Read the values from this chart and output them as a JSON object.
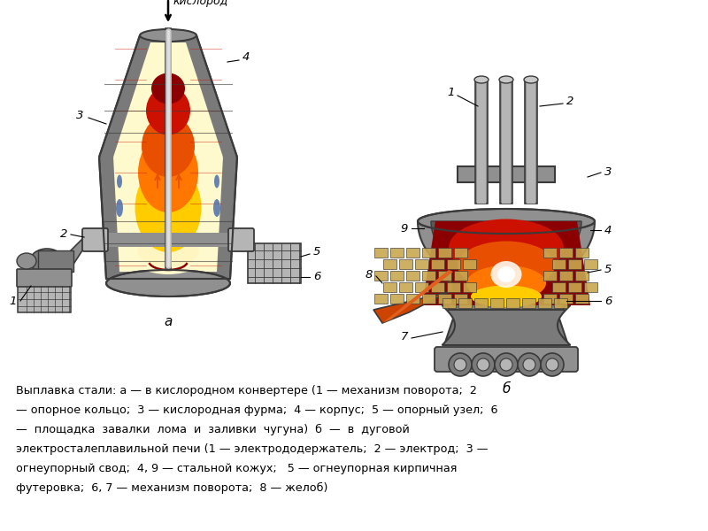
{
  "background_color": "#ffffff",
  "fig_width": 8.0,
  "fig_height": 6.0,
  "dpi": 100,
  "caption_line1": "Выплавка стали: а — в кислородном конвертере (1 — механизм поворота;  2",
  "caption_line2": "— опорное кольцо;  3 — кислородная фурма;  4 — корпус;  5 — опорный узел;  6",
  "caption_line3": "—  площадка  завалки  лома  и  заливки  чугуна)  б  —  в  дуговой",
  "caption_line4": "электросталеплавильной печи (1 — электрододержатель;  2 — электрод;  3 —",
  "caption_line5": "огнеупорный свод;  4, 9 — стальной кожух;   5 — огнеупорная кирпичная",
  "caption_line6": "футеровка;  6, 7 — механизм поворота;  8 — желоб)",
  "label_a": "а",
  "label_b": "б",
  "oxygen_label": "кислород",
  "colors": {
    "gray1": "#7a7a7a",
    "gray2": "#909090",
    "gray3": "#b5b5b5",
    "gray4": "#c8c8c8",
    "gray5": "#5a5a5a",
    "gray6": "#686868",
    "dark": "#3a3a3a",
    "fire_dark_red": "#8b0000",
    "fire_red": "#cc1100",
    "fire_orange": "#e85000",
    "fire_orange2": "#ff7700",
    "fire_yellow": "#ffcc00",
    "fire_cream": "#fffacd",
    "fire_white": "#ffffff",
    "brick": "#9b8040",
    "brick2": "#c8a850",
    "blue_accent": "#4466aa",
    "spout_orange": "#cc4400"
  }
}
